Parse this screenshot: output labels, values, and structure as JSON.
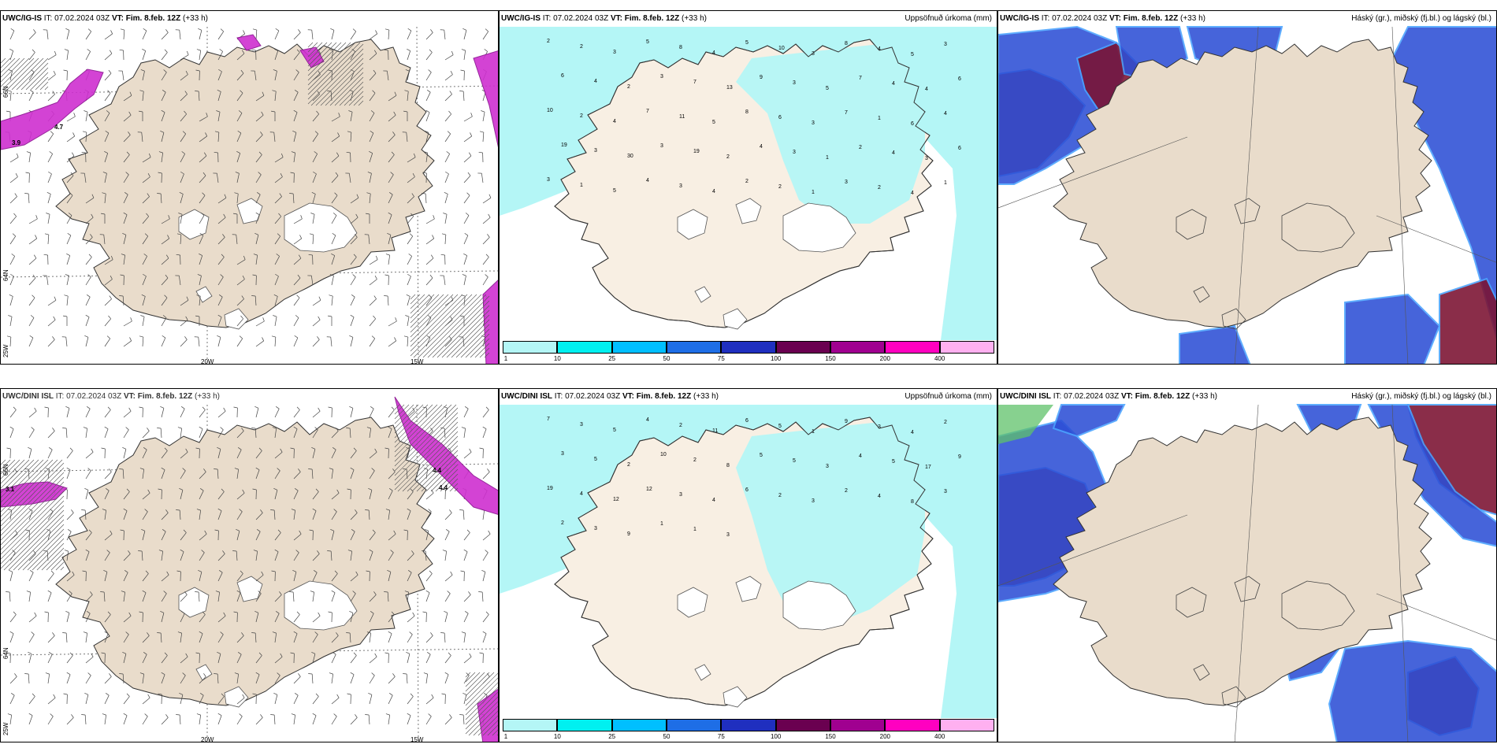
{
  "colors": {
    "land": "#e9dccb",
    "land_light": "#f8efe3",
    "precip_light": "#b4f6f6",
    "precip_mid": "#00e5ee",
    "cloud_low": "#2d4fd6",
    "cloud_high": "#7b1131",
    "snow_magenta": "#cf2fd0"
  },
  "panels": {
    "top_wind": {
      "model": "UWC/IG-IS",
      "it": "IT: 07.02.2024 03Z",
      "vt": "VT: Fim. 8.feb. 12Z",
      "lead": "(+33 h)"
    },
    "top_precip": {
      "model": "UWC/IG-IS",
      "it": "IT: 07.02.2024 03Z",
      "vt": "VT: Fim. 8.feb. 12Z",
      "lead": "(+33 h)",
      "right": "Uppsöfnuð úrkoma (mm)"
    },
    "top_cloud": {
      "model": "UWC/IG-IS",
      "it": "IT: 07.02.2024 03Z",
      "vt": "VT: Fim. 8.feb. 12Z",
      "lead": "(+33 h)",
      "right": "Háský (gr.), miðský (fj.bl.) og lágský (bl.)"
    },
    "bot_wind": {
      "model": "UWC/DINI ISL",
      "it": "IT: 07.02.2024 03Z",
      "vt": "VT: Fim. 8.feb. 12Z",
      "lead": "(+33 h)"
    },
    "bot_precip": {
      "model": "UWC/DINI ISL",
      "it": "IT: 07.02.2024 03Z",
      "vt": "VT: Fim. 8.feb. 12Z",
      "lead": "(+33 h)",
      "right": "Uppsöfnuð úrkoma (mm)"
    },
    "bot_cloud": {
      "model": "UWC/DINI ISL",
      "it": "IT: 07.02.2024 03Z",
      "vt": "VT: Fim. 8.feb. 12Z",
      "lead": "(+33 h)",
      "right": "Háský (gr.), miðský (fj.bl.) og lágský (bl.)"
    }
  },
  "wind_axes": {
    "lon_20w": "20W",
    "lon_15w": "15W",
    "lat_66n": "66N",
    "lat_64n": "64N",
    "lat_25w": "25W",
    "lat_right_66n": "66N",
    "lat_right_64n": "64N"
  },
  "colorbar": {
    "ticks": [
      "1",
      "10",
      "25",
      "50",
      "75",
      "100",
      "150",
      "200",
      "400"
    ],
    "colors": [
      "#b4f6f6",
      "#00f0f0",
      "#00bfff",
      "#1e6ee6",
      "#1f2fbf",
      "#6a0050",
      "#a00090",
      "#ff00c0",
      "#ffb0f0"
    ]
  },
  "precip_labels_top": [
    "2",
    "2",
    "3",
    "5",
    "8",
    "4",
    "5",
    "10",
    "3",
    "8",
    "4",
    "5",
    "3",
    "6",
    "4",
    "2",
    "3",
    "7",
    "13",
    "9",
    "3",
    "5",
    "7",
    "4",
    "4",
    "6",
    "10",
    "2",
    "4",
    "7",
    "11",
    "5",
    "8",
    "6",
    "3",
    "7",
    "1",
    "6",
    "4",
    "19",
    "3",
    "30",
    "3",
    "19",
    "2",
    "4",
    "3",
    "1",
    "2",
    "4",
    "3",
    "6",
    "3",
    "1",
    "5",
    "4",
    "3",
    "4",
    "2",
    "2",
    "1",
    "3",
    "2",
    "4",
    "1"
  ],
  "precip_labels_bot": [
    "7",
    "3",
    "5",
    "4",
    "2",
    "11",
    "6",
    "5",
    "1",
    "9",
    "3",
    "4",
    "2",
    "3",
    "5",
    "2",
    "10",
    "2",
    "8",
    "5",
    "5",
    "3",
    "4",
    "5",
    "17",
    "9",
    "19",
    "4",
    "12",
    "12",
    "3",
    "4",
    "6",
    "2",
    "3",
    "2",
    "4",
    "8",
    "3",
    "2",
    "3",
    "9",
    "1",
    "1",
    "3"
  ],
  "wind_map_labels_top": [
    "3.9",
    "4.7"
  ],
  "wind_map_labels_bot": [
    "3.1",
    "4.4",
    "4.4"
  ]
}
